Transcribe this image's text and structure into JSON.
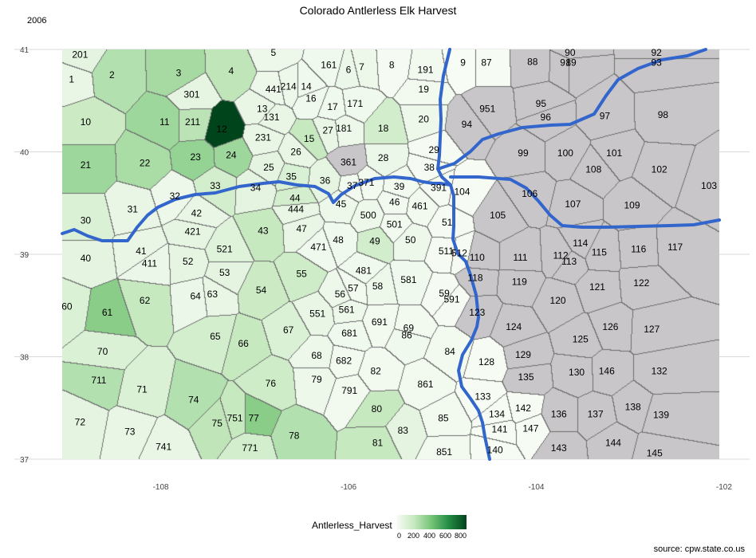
{
  "title": "Colorado Antlerless Elk Harvest",
  "subtitle": "2006",
  "caption": "source: cpw.state.co.us",
  "legend": {
    "title": "Antlerless_Harvest",
    "ticks": [
      "0",
      "200",
      "400",
      "600",
      "800"
    ],
    "range": [
      0,
      800
    ],
    "colors": [
      "#f7fcf5",
      "#c7e9c0",
      "#74c476",
      "#238b45",
      "#00441b"
    ]
  },
  "axes": {
    "x_ticks": [
      "-108",
      "-106",
      "-104",
      "-102"
    ],
    "y_ticks": [
      "41",
      "40",
      "39",
      "38",
      "37"
    ],
    "lon_range": [
      -109.05,
      -102.05
    ],
    "lat_range": [
      37.0,
      41.0
    ]
  },
  "colors": {
    "no_data": "#c8c6c8",
    "highway": "#3366cc",
    "boundary": "#6e6e6e"
  },
  "units": [
    {
      "id": "1",
      "lon": -108.95,
      "lat": 40.71,
      "harvest": 60
    },
    {
      "id": "2",
      "lon": -108.52,
      "lat": 40.75,
      "harvest": 250
    },
    {
      "id": "3",
      "lon": -107.81,
      "lat": 40.77,
      "harvest": 280
    },
    {
      "id": "4",
      "lon": -107.25,
      "lat": 40.79,
      "harvest": 220
    },
    {
      "id": "5",
      "lon": -106.8,
      "lat": 40.97,
      "harvest": 40
    },
    {
      "id": "6",
      "lon": -106.0,
      "lat": 40.8,
      "harvest": 50
    },
    {
      "id": "7",
      "lon": -105.86,
      "lat": 40.83,
      "harvest": 40
    },
    {
      "id": "8",
      "lon": -105.54,
      "lat": 40.85,
      "harvest": 10
    },
    {
      "id": "9",
      "lon": -104.78,
      "lat": 40.87,
      "harvest": 0
    },
    {
      "id": "10",
      "lon": -108.8,
      "lat": 40.29,
      "harvest": 180
    },
    {
      "id": "11",
      "lon": -107.96,
      "lat": 40.29,
      "harvest": 300
    },
    {
      "id": "12",
      "lon": -107.35,
      "lat": 40.22,
      "harvest": 820
    },
    {
      "id": "13",
      "lon": -106.92,
      "lat": 40.42,
      "harvest": 60
    },
    {
      "id": "14",
      "lon": -106.45,
      "lat": 40.64,
      "harvest": 30
    },
    {
      "id": "15",
      "lon": -106.42,
      "lat": 40.13,
      "harvest": 200
    },
    {
      "id": "16",
      "lon": -106.4,
      "lat": 40.52,
      "harvest": 30
    },
    {
      "id": "17",
      "lon": -106.17,
      "lat": 40.44,
      "harvest": 30
    },
    {
      "id": "18",
      "lon": -105.63,
      "lat": 40.23,
      "harvest": 160
    },
    {
      "id": "19",
      "lon": -105.2,
      "lat": 40.61,
      "harvest": 20
    },
    {
      "id": "20",
      "lon": -105.2,
      "lat": 40.32,
      "harvest": 40
    },
    {
      "id": "21",
      "lon": -108.8,
      "lat": 39.87,
      "harvest": 300
    },
    {
      "id": "22",
      "lon": -108.17,
      "lat": 39.89,
      "harvest": 270
    },
    {
      "id": "23",
      "lon": -107.63,
      "lat": 39.95,
      "harvest": 320
    },
    {
      "id": "24",
      "lon": -107.25,
      "lat": 39.97,
      "harvest": 300
    },
    {
      "id": "25",
      "lon": -106.85,
      "lat": 39.85,
      "harvest": 80
    },
    {
      "id": "26",
      "lon": -106.56,
      "lat": 40.0,
      "harvest": 60
    },
    {
      "id": "27",
      "lon": -106.22,
      "lat": 40.21,
      "harvest": 60
    },
    {
      "id": "28",
      "lon": -105.63,
      "lat": 39.94,
      "harvest": 50
    },
    {
      "id": "29",
      "lon": -105.09,
      "lat": 40.02,
      "harvest": 10
    },
    {
      "id": "30",
      "lon": -108.8,
      "lat": 39.33,
      "harvest": 120
    },
    {
      "id": "31",
      "lon": -108.3,
      "lat": 39.44,
      "harvest": 60
    },
    {
      "id": "32",
      "lon": -107.85,
      "lat": 39.57,
      "harvest": 40
    },
    {
      "id": "33",
      "lon": -107.42,
      "lat": 39.67,
      "harvest": 150
    },
    {
      "id": "34",
      "lon": -106.99,
      "lat": 39.65,
      "harvest": 80
    },
    {
      "id": "35",
      "lon": -106.61,
      "lat": 39.76,
      "harvest": 130
    },
    {
      "id": "36",
      "lon": -106.25,
      "lat": 39.72,
      "harvest": 70
    },
    {
      "id": "37",
      "lon": -105.96,
      "lat": 39.67,
      "harvest": 20
    },
    {
      "id": "38",
      "lon": -105.14,
      "lat": 39.85,
      "harvest": 10
    },
    {
      "id": "39",
      "lon": -105.46,
      "lat": 39.66,
      "harvest": 20
    },
    {
      "id": "40",
      "lon": -108.8,
      "lat": 38.96,
      "harvest": 80
    },
    {
      "id": "41",
      "lon": -108.21,
      "lat": 39.03,
      "harvest": 60
    },
    {
      "id": "42",
      "lon": -107.62,
      "lat": 39.4,
      "harvest": 60
    },
    {
      "id": "43",
      "lon": -106.91,
      "lat": 39.23,
      "harvest": 200
    },
    {
      "id": "44",
      "lon": -106.57,
      "lat": 39.55,
      "harvest": 150
    },
    {
      "id": "45",
      "lon": -106.08,
      "lat": 39.49,
      "harvest": 40
    },
    {
      "id": "46",
      "lon": -105.51,
      "lat": 39.51,
      "harvest": 20
    },
    {
      "id": "47",
      "lon": -106.5,
      "lat": 39.25,
      "harvest": 60
    },
    {
      "id": "48",
      "lon": -106.11,
      "lat": 39.14,
      "harvest": 30
    },
    {
      "id": "49",
      "lon": -105.72,
      "lat": 39.13,
      "harvest": 160
    },
    {
      "id": "50",
      "lon": -105.34,
      "lat": 39.14,
      "harvest": 40
    },
    {
      "id": "51",
      "lon": -104.95,
      "lat": 39.31,
      "harvest": 10
    },
    {
      "id": "52",
      "lon": -107.71,
      "lat": 38.93,
      "harvest": 70
    },
    {
      "id": "53",
      "lon": -107.32,
      "lat": 38.82,
      "harvest": 80
    },
    {
      "id": "54",
      "lon": -106.93,
      "lat": 38.65,
      "harvest": 180
    },
    {
      "id": "55",
      "lon": -106.5,
      "lat": 38.81,
      "harvest": 170
    },
    {
      "id": "56",
      "lon": -106.09,
      "lat": 38.61,
      "harvest": 40
    },
    {
      "id": "57",
      "lon": -105.95,
      "lat": 38.67,
      "harvest": 20
    },
    {
      "id": "58",
      "lon": -105.69,
      "lat": 38.69,
      "harvest": 40
    },
    {
      "id": "59",
      "lon": -104.98,
      "lat": 38.62,
      "harvest": 10
    },
    {
      "id": "60",
      "lon": -109.0,
      "lat": 38.49,
      "harvest": 120
    },
    {
      "id": "61",
      "lon": -108.57,
      "lat": 38.43,
      "harvest": 350
    },
    {
      "id": "62",
      "lon": -108.17,
      "lat": 38.55,
      "harvest": 200
    },
    {
      "id": "63",
      "lon": -107.45,
      "lat": 38.61,
      "harvest": 60
    },
    {
      "id": "64",
      "lon": -107.63,
      "lat": 38.59,
      "harvest": 50
    },
    {
      "id": "65",
      "lon": -107.42,
      "lat": 38.2,
      "harvest": 150
    },
    {
      "id": "66",
      "lon": -107.12,
      "lat": 38.13,
      "harvest": 200
    },
    {
      "id": "67",
      "lon": -106.64,
      "lat": 38.26,
      "harvest": 120
    },
    {
      "id": "68",
      "lon": -106.34,
      "lat": 38.01,
      "harvest": 40
    },
    {
      "id": "69",
      "lon": -105.36,
      "lat": 38.28,
      "harvest": 20
    },
    {
      "id": "70",
      "lon": -108.62,
      "lat": 38.05,
      "harvest": 120
    },
    {
      "id": "71",
      "lon": -108.2,
      "lat": 37.68,
      "harvest": 120
    },
    {
      "id": "72",
      "lon": -108.86,
      "lat": 37.36,
      "harvest": 80
    },
    {
      "id": "73",
      "lon": -108.33,
      "lat": 37.27,
      "harvest": 60
    },
    {
      "id": "74",
      "lon": -107.65,
      "lat": 37.58,
      "harvest": 250
    },
    {
      "id": "75",
      "lon": -107.4,
      "lat": 37.35,
      "harvest": 220
    },
    {
      "id": "76",
      "lon": -106.83,
      "lat": 37.74,
      "harvest": 170
    },
    {
      "id": "77",
      "lon": -107.01,
      "lat": 37.4,
      "harvest": 350
    },
    {
      "id": "78",
      "lon": -106.58,
      "lat": 37.23,
      "harvest": 250
    },
    {
      "id": "79",
      "lon": -106.34,
      "lat": 37.78,
      "harvest": 40
    },
    {
      "id": "80",
      "lon": -105.7,
      "lat": 37.49,
      "harvest": 200
    },
    {
      "id": "81",
      "lon": -105.69,
      "lat": 37.16,
      "harvest": 200
    },
    {
      "id": "82",
      "lon": -105.71,
      "lat": 37.86,
      "harvest": 20
    },
    {
      "id": "83",
      "lon": -105.42,
      "lat": 37.28,
      "harvest": 80
    },
    {
      "id": "84",
      "lon": -104.92,
      "lat": 38.05,
      "harvest": 20
    },
    {
      "id": "85",
      "lon": -104.99,
      "lat": 37.4,
      "harvest": 20
    },
    {
      "id": "86",
      "lon": -105.38,
      "lat": 38.21,
      "harvest": 30
    },
    {
      "id": "87",
      "lon": -104.53,
      "lat": 40.87,
      "harvest": 5
    },
    {
      "id": "90",
      "lon": -103.64,
      "lat": 40.97,
      "harvest": null
    },
    {
      "id": "91",
      "lon": -103.69,
      "lat": 40.87,
      "harvest": null
    },
    {
      "id": "92",
      "lon": -102.72,
      "lat": 40.97,
      "harvest": null
    },
    {
      "id": "93",
      "lon": -102.72,
      "lat": 40.87,
      "harvest": null
    },
    {
      "id": "94",
      "lon": -104.74,
      "lat": 40.27,
      "harvest": null
    },
    {
      "id": "95",
      "lon": -103.95,
      "lat": 40.47,
      "harvest": null
    },
    {
      "id": "96",
      "lon": -103.9,
      "lat": 40.34,
      "harvest": null
    },
    {
      "id": "97",
      "lon": -103.27,
      "lat": 40.35,
      "harvest": null
    },
    {
      "id": "98",
      "lon": -102.65,
      "lat": 40.36,
      "harvest": null
    },
    {
      "id": "99",
      "lon": -104.14,
      "lat": 39.99,
      "harvest": null
    },
    {
      "id": "100",
      "lon": -103.69,
      "lat": 39.99,
      "harvest": null
    },
    {
      "id": "101",
      "lon": -103.17,
      "lat": 39.99,
      "harvest": null
    },
    {
      "id": "102",
      "lon": -102.69,
      "lat": 39.83,
      "harvest": null
    },
    {
      "id": "103",
      "lon": -102.16,
      "lat": 39.67,
      "harvest": null
    },
    {
      "id": "104",
      "lon": -104.79,
      "lat": 39.61,
      "harvest": 5
    },
    {
      "id": "105",
      "lon": -104.41,
      "lat": 39.38,
      "harvest": null
    },
    {
      "id": "106",
      "lon": -104.07,
      "lat": 39.59,
      "harvest": null
    },
    {
      "id": "107",
      "lon": -103.61,
      "lat": 39.49,
      "harvest": null
    },
    {
      "id": "108",
      "lon": -103.39,
      "lat": 39.83,
      "harvest": null
    },
    {
      "id": "109",
      "lon": -102.98,
      "lat": 39.48,
      "harvest": null
    },
    {
      "id": "110",
      "lon": -104.63,
      "lat": 38.97,
      "harvest": null
    },
    {
      "id": "111",
      "lon": -104.17,
      "lat": 38.97,
      "harvest": null
    },
    {
      "id": "112",
      "lon": -103.74,
      "lat": 38.99,
      "harvest": null
    },
    {
      "id": "113",
      "lon": -103.65,
      "lat": 38.93,
      "harvest": null
    },
    {
      "id": "114",
      "lon": -103.53,
      "lat": 39.11,
      "harvest": null
    },
    {
      "id": "115",
      "lon": -103.33,
      "lat": 39.02,
      "harvest": null
    },
    {
      "id": "116",
      "lon": -102.91,
      "lat": 39.05,
      "harvest": null
    },
    {
      "id": "117",
      "lon": -102.52,
      "lat": 39.07,
      "harvest": null
    },
    {
      "id": "118",
      "lon": -104.65,
      "lat": 38.77,
      "harvest": null
    },
    {
      "id": "119",
      "lon": -104.18,
      "lat": 38.73,
      "harvest": null
    },
    {
      "id": "120",
      "lon": -103.77,
      "lat": 38.55,
      "harvest": null
    },
    {
      "id": "121",
      "lon": -103.35,
      "lat": 38.68,
      "harvest": null
    },
    {
      "id": "122",
      "lon": -102.88,
      "lat": 38.72,
      "harvest": null
    },
    {
      "id": "123",
      "lon": -104.63,
      "lat": 38.43,
      "harvest": null
    },
    {
      "id": "124",
      "lon": -104.24,
      "lat": 38.29,
      "harvest": null
    },
    {
      "id": "125",
      "lon": -103.53,
      "lat": 38.17,
      "harvest": null
    },
    {
      "id": "126",
      "lon": -103.21,
      "lat": 38.29,
      "harvest": null
    },
    {
      "id": "127",
      "lon": -102.77,
      "lat": 38.27,
      "harvest": null
    },
    {
      "id": "128",
      "lon": -104.53,
      "lat": 37.95,
      "harvest": 5
    },
    {
      "id": "129",
      "lon": -104.14,
      "lat": 38.02,
      "harvest": null
    },
    {
      "id": "130",
      "lon": -103.57,
      "lat": 37.85,
      "harvest": null
    },
    {
      "id": "132",
      "lon": -102.69,
      "lat": 37.86,
      "harvest": null
    },
    {
      "id": "133",
      "lon": -104.57,
      "lat": 37.61,
      "harvest": 5
    },
    {
      "id": "134",
      "lon": -104.42,
      "lat": 37.44,
      "harvest": 5
    },
    {
      "id": "135",
      "lon": -104.11,
      "lat": 37.8,
      "harvest": null
    },
    {
      "id": "136",
      "lon": -103.76,
      "lat": 37.44,
      "harvest": null
    },
    {
      "id": "137",
      "lon": -103.37,
      "lat": 37.44,
      "harvest": null
    },
    {
      "id": "138",
      "lon": -102.97,
      "lat": 37.51,
      "harvest": null
    },
    {
      "id": "139",
      "lon": -102.67,
      "lat": 37.43,
      "harvest": null
    },
    {
      "id": "140",
      "lon": -104.44,
      "lat": 37.09,
      "harvest": 5
    },
    {
      "id": "141",
      "lon": -104.39,
      "lat": 37.29,
      "harvest": 5
    },
    {
      "id": "142",
      "lon": -104.14,
      "lat": 37.5,
      "harvest": 5
    },
    {
      "id": "143",
      "lon": -103.76,
      "lat": 37.11,
      "harvest": null
    },
    {
      "id": "144",
      "lon": -103.18,
      "lat": 37.16,
      "harvest": null
    },
    {
      "id": "145",
      "lon": -102.74,
      "lat": 37.06,
      "harvest": null
    },
    {
      "id": "146",
      "lon": -103.25,
      "lat": 37.86,
      "harvest": null
    },
    {
      "id": "147",
      "lon": -104.06,
      "lat": 37.3,
      "harvest": 5
    },
    {
      "id": "88",
      "lon": -104.04,
      "lat": 40.88,
      "harvest": null
    },
    {
      "id": "89",
      "lon": -103.63,
      "lat": 40.87,
      "harvest": null
    },
    {
      "id": "131",
      "lon": -106.82,
      "lat": 40.34,
      "harvest": 60
    },
    {
      "id": "161",
      "lon": -106.21,
      "lat": 40.85,
      "harvest": 30
    },
    {
      "id": "171",
      "lon": -105.93,
      "lat": 40.47,
      "harvest": 30
    },
    {
      "id": "181",
      "lon": -106.05,
      "lat": 40.23,
      "harvest": 40
    },
    {
      "id": "191",
      "lon": -105.18,
      "lat": 40.8,
      "harvest": 20
    },
    {
      "id": "201",
      "lon": -108.86,
      "lat": 40.95,
      "harvest": 80
    },
    {
      "id": "211",
      "lon": -107.66,
      "lat": 40.29,
      "harvest": 230
    },
    {
      "id": "214",
      "lon": -106.64,
      "lat": 40.64,
      "harvest": 40
    },
    {
      "id": "231",
      "lon": -106.91,
      "lat": 40.14,
      "harvest": 60
    },
    {
      "id": "301",
      "lon": -107.67,
      "lat": 40.56,
      "harvest": 70
    },
    {
      "id": "361",
      "lon": -106.0,
      "lat": 39.9,
      "harvest": null
    },
    {
      "id": "371",
      "lon": -105.81,
      "lat": 39.7,
      "harvest": 20
    },
    {
      "id": "391",
      "lon": -105.04,
      "lat": 39.65,
      "harvest": 10
    },
    {
      "id": "411",
      "lon": -108.12,
      "lat": 38.91,
      "harvest": 50
    },
    {
      "id": "421",
      "lon": -107.66,
      "lat": 39.22,
      "harvest": 70
    },
    {
      "id": "441",
      "lon": -106.8,
      "lat": 40.61,
      "harvest": 40
    },
    {
      "id": "444",
      "lon": -106.56,
      "lat": 39.44,
      "harvest": 60
    },
    {
      "id": "461",
      "lon": -105.24,
      "lat": 39.47,
      "harvest": 20
    },
    {
      "id": "471",
      "lon": -106.32,
      "lat": 39.07,
      "harvest": 30
    },
    {
      "id": "481",
      "lon": -105.84,
      "lat": 38.84,
      "harvest": 30
    },
    {
      "id": "500",
      "lon": -105.79,
      "lat": 39.38,
      "harvest": 40
    },
    {
      "id": "501",
      "lon": -105.51,
      "lat": 39.29,
      "harvest": 20
    },
    {
      "id": "511",
      "lon": -104.96,
      "lat": 39.03,
      "harvest": 10
    },
    {
      "id": "512",
      "lon": -104.82,
      "lat": 39.01,
      "harvest": 10
    },
    {
      "id": "521",
      "lon": -107.32,
      "lat": 39.05,
      "harvest": 100
    },
    {
      "id": "551",
      "lon": -106.33,
      "lat": 38.42,
      "harvest": 60
    },
    {
      "id": "561",
      "lon": -106.02,
      "lat": 38.46,
      "harvest": 40
    },
    {
      "id": "581",
      "lon": -105.36,
      "lat": 38.75,
      "harvest": 30
    },
    {
      "id": "591",
      "lon": -104.9,
      "lat": 38.56,
      "harvest": 10
    },
    {
      "id": "681",
      "lon": -105.99,
      "lat": 38.23,
      "harvest": 30
    },
    {
      "id": "682",
      "lon": -106.05,
      "lat": 37.96,
      "harvest": 20
    },
    {
      "id": "691",
      "lon": -105.67,
      "lat": 38.34,
      "harvest": 20
    },
    {
      "id": "711",
      "lon": -108.66,
      "lat": 37.77,
      "harvest": 250
    },
    {
      "id": "741",
      "lon": -107.97,
      "lat": 37.12,
      "harvest": 60
    },
    {
      "id": "751",
      "lon": -107.21,
      "lat": 37.4,
      "harvest": 200
    },
    {
      "id": "771",
      "lon": -107.05,
      "lat": 37.11,
      "harvest": 150
    },
    {
      "id": "791",
      "lon": -105.99,
      "lat": 37.67,
      "harvest": 20
    },
    {
      "id": "851",
      "lon": -104.98,
      "lat": 37.07,
      "harvest": 20
    },
    {
      "id": "861",
      "lon": -105.18,
      "lat": 37.73,
      "harvest": 20
    },
    {
      "id": "951",
      "lon": -104.52,
      "lat": 40.42,
      "harvest": null
    }
  ]
}
